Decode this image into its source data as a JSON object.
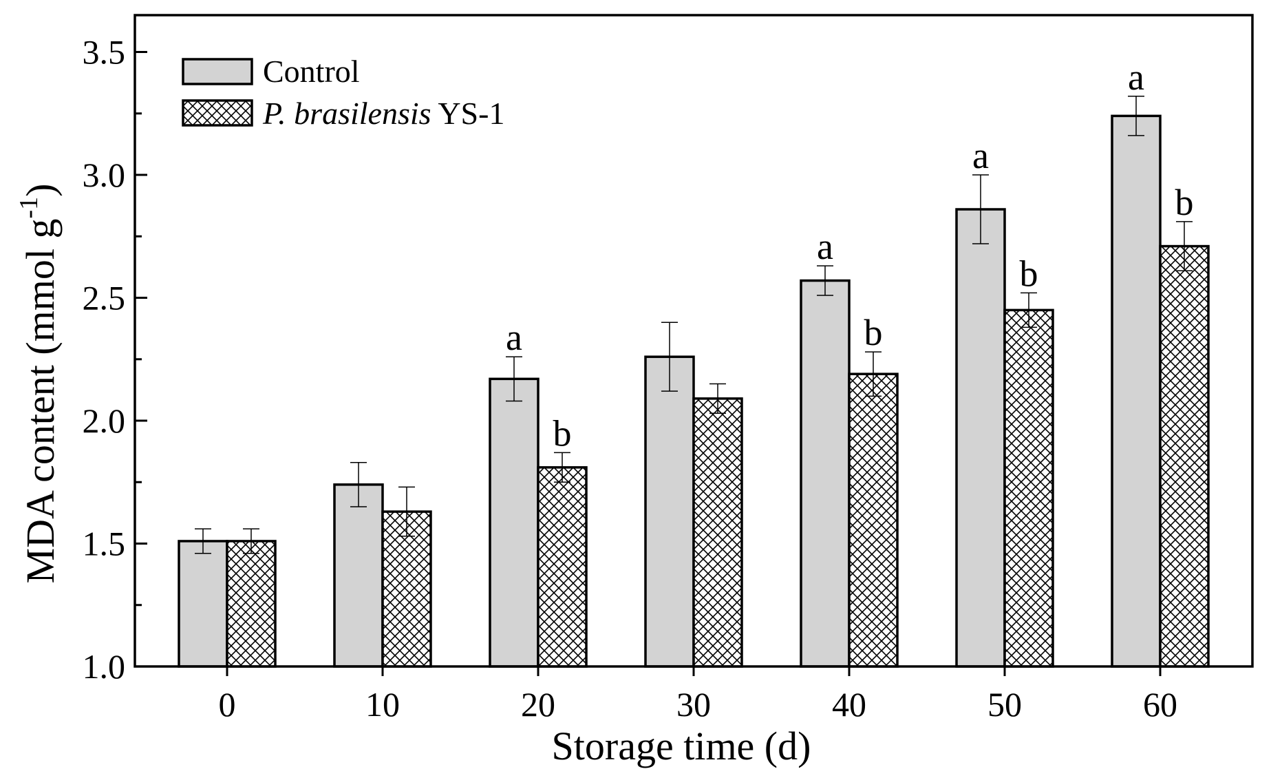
{
  "chart_data": {
    "type": "bar",
    "xlabel": "Storage time (d)",
    "ylabel_main": "MDA content (mmol g",
    "ylabel_sup": "-1",
    "ylabel_close": ")",
    "ylim": [
      1.0,
      3.65
    ],
    "yticks": [
      1.0,
      1.5,
      2.0,
      2.5,
      3.0,
      3.5
    ],
    "ytick_labels": [
      "1.0",
      "1.5",
      "2.0",
      "2.5",
      "3.0",
      "3.5"
    ],
    "categories": [
      "0",
      "10",
      "20",
      "30",
      "40",
      "50",
      "60"
    ],
    "series": [
      {
        "name": "Control",
        "legend_label": "Control",
        "fill": "#d3d3d3",
        "pattern": "solid",
        "values": [
          1.51,
          1.74,
          2.17,
          2.26,
          2.57,
          2.86,
          3.24
        ],
        "errors": [
          0.05,
          0.09,
          0.09,
          0.14,
          0.06,
          0.14,
          0.08
        ],
        "letters": [
          "",
          "",
          "a",
          "",
          "a",
          "a",
          "a"
        ]
      },
      {
        "name": "P. brasilensis YS-1",
        "legend_label_italic": "P. brasilensis",
        "legend_label_plain": " YS-1",
        "fill": "#ffffff",
        "pattern": "crosshatch",
        "values": [
          1.51,
          1.63,
          1.81,
          2.09,
          2.19,
          2.45,
          2.71
        ],
        "errors": [
          0.05,
          0.1,
          0.06,
          0.06,
          0.09,
          0.07,
          0.1
        ],
        "letters": [
          "",
          "",
          "b",
          "",
          "b",
          "b",
          "b"
        ]
      }
    ]
  }
}
